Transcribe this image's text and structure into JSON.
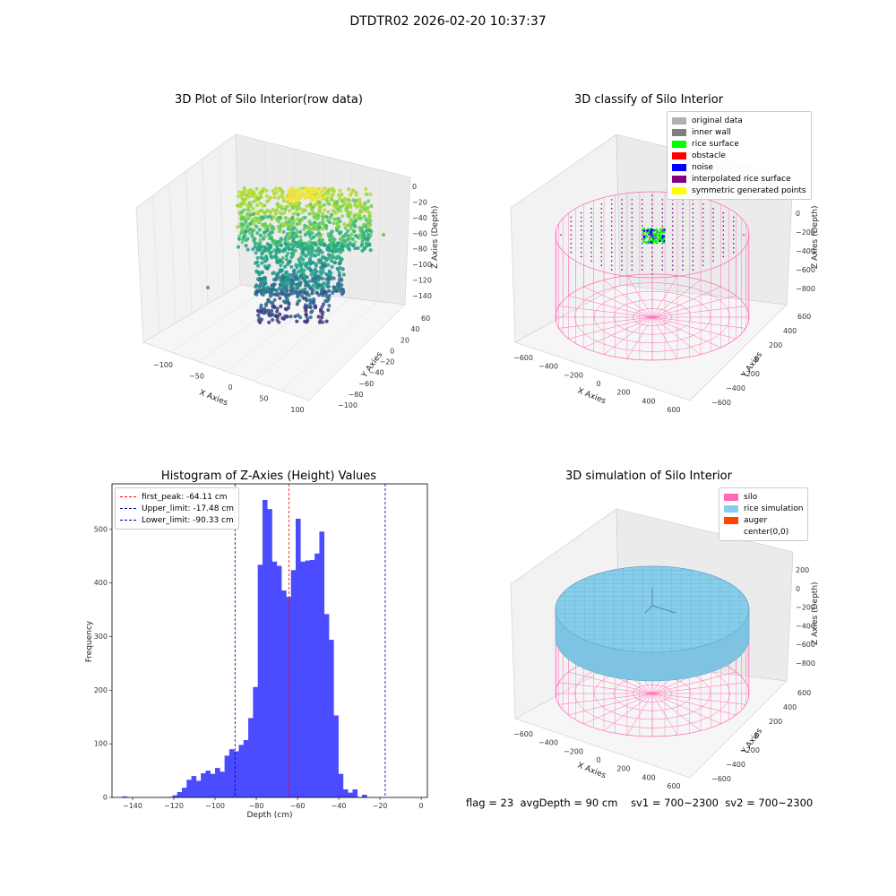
{
  "suptitle": "DTDTR02 2026-02-20 10:37:37",
  "panels": {
    "raw": {
      "title": "3D Plot of Silo Interior(row data)",
      "xlabel": "X Axies",
      "ylabel": "Y Axies",
      "zlabel": "Z Axies (Depth)",
      "xticks": [
        "−100",
        "−50",
        "0",
        "50",
        "100"
      ],
      "yticks": [
        "−100",
        "−80",
        "−60",
        "−40",
        "−20",
        "0",
        "20",
        "40",
        "60"
      ],
      "zticks": [
        "0",
        "−20",
        "−40",
        "−60",
        "−80",
        "−100",
        "−120",
        "−140"
      ]
    },
    "classify": {
      "title": "3D classify of Silo Interior",
      "xlabel": "X Axies",
      "ylabel": "Y Axies",
      "zlabel": "Z Axies (Depth)",
      "xticks": [
        "−600",
        "−400",
        "−200",
        "0",
        "200",
        "400",
        "600"
      ],
      "yticks": [
        "−600",
        "−400",
        "−200",
        "0",
        "200",
        "400",
        "600"
      ],
      "zticks": [
        "0",
        "−200",
        "−400",
        "−600",
        "−800"
      ],
      "legend": [
        {
          "label": "original data",
          "color": "#b0b0b0"
        },
        {
          "label": "inner wall",
          "color": "#808080"
        },
        {
          "label": "rice surface",
          "color": "#00ff00"
        },
        {
          "label": "obstacle",
          "color": "#ff0000"
        },
        {
          "label": "noise",
          "color": "#0000ff"
        },
        {
          "label": "interpolated rice surface",
          "color": "#800080"
        },
        {
          "label": "symmetric generated points",
          "color": "#ffff00"
        }
      ]
    },
    "simulation": {
      "title": "3D simulation of Silo Interior",
      "xlabel": "X Axies",
      "ylabel": "Y Axies",
      "zlabel": "Z Axies (Depth)",
      "xticks": [
        "−600",
        "−400",
        "−200",
        "0",
        "200",
        "400",
        "600"
      ],
      "yticks": [
        "−600",
        "−400",
        "−200",
        "0",
        "200",
        "400",
        "600"
      ],
      "zticks": [
        "200",
        "0",
        "−200",
        "−400",
        "−600",
        "−800"
      ],
      "legend": [
        {
          "label": "silo",
          "color": "#ff69b4"
        },
        {
          "label": "rice simulation",
          "color": "#87ceeb"
        },
        {
          "label": "auger",
          "color": "#ff4500"
        },
        {
          "label": "center(0,0)",
          "color": "#ffffff"
        }
      ]
    }
  },
  "chart_data": {
    "type": "bar",
    "title": "Histogram of Z-Axies (Height) Values",
    "xlabel": "Depth (cm)",
    "ylabel": "Frequency",
    "xlim": [
      -150,
      3
    ],
    "ylim": [
      0,
      585
    ],
    "xticks": [
      -140,
      -120,
      -100,
      -80,
      -60,
      -40,
      -20,
      0
    ],
    "yticks": [
      0,
      100,
      200,
      300,
      400,
      500
    ],
    "bar_color": "#4b4bff",
    "bin_width": 2.3,
    "bins": [
      {
        "x": -145.0,
        "y": 2
      },
      {
        "x": -123.0,
        "y": 1
      },
      {
        "x": -120.7,
        "y": 4
      },
      {
        "x": -118.4,
        "y": 10
      },
      {
        "x": -116.1,
        "y": 18
      },
      {
        "x": -113.8,
        "y": 33
      },
      {
        "x": -111.5,
        "y": 40
      },
      {
        "x": -109.2,
        "y": 31
      },
      {
        "x": -106.9,
        "y": 45
      },
      {
        "x": -104.6,
        "y": 50
      },
      {
        "x": -102.3,
        "y": 44
      },
      {
        "x": -100.0,
        "y": 55
      },
      {
        "x": -97.7,
        "y": 48
      },
      {
        "x": -95.4,
        "y": 78
      },
      {
        "x": -93.1,
        "y": 90
      },
      {
        "x": -90.8,
        "y": 86
      },
      {
        "x": -88.5,
        "y": 98
      },
      {
        "x": -86.2,
        "y": 107
      },
      {
        "x": -83.9,
        "y": 148
      },
      {
        "x": -81.6,
        "y": 206
      },
      {
        "x": -79.3,
        "y": 434
      },
      {
        "x": -77.0,
        "y": 555
      },
      {
        "x": -74.7,
        "y": 538
      },
      {
        "x": -72.4,
        "y": 440
      },
      {
        "x": -70.1,
        "y": 432
      },
      {
        "x": -67.8,
        "y": 386
      },
      {
        "x": -65.5,
        "y": 374
      },
      {
        "x": -63.2,
        "y": 424
      },
      {
        "x": -60.9,
        "y": 520
      },
      {
        "x": -58.6,
        "y": 440
      },
      {
        "x": -56.3,
        "y": 442
      },
      {
        "x": -54.0,
        "y": 443
      },
      {
        "x": -51.7,
        "y": 455
      },
      {
        "x": -49.4,
        "y": 496
      },
      {
        "x": -47.1,
        "y": 342
      },
      {
        "x": -44.8,
        "y": 294
      },
      {
        "x": -42.5,
        "y": 153
      },
      {
        "x": -40.2,
        "y": 44
      },
      {
        "x": -37.9,
        "y": 15
      },
      {
        "x": -35.6,
        "y": 9
      },
      {
        "x": -33.3,
        "y": 15
      },
      {
        "x": -31.0,
        "y": 1
      },
      {
        "x": -28.7,
        "y": 5
      }
    ],
    "vlines": [
      {
        "label": "first_peak: -64.11 cm",
        "x": -64.11,
        "color": "#ff0000"
      },
      {
        "label": "Upper_limit: -17.48 cm",
        "x": -17.48,
        "color": "#00008b"
      },
      {
        "label": "Lower_limit: -90.33 cm",
        "x": -90.33,
        "color": "#00008b"
      }
    ]
  },
  "footer": {
    "flag": "flag = 23",
    "avg": "avgDepth = 90 cm",
    "sv1": "sv1 = 700~2300",
    "sv2": "sv2 = 700~2300"
  }
}
